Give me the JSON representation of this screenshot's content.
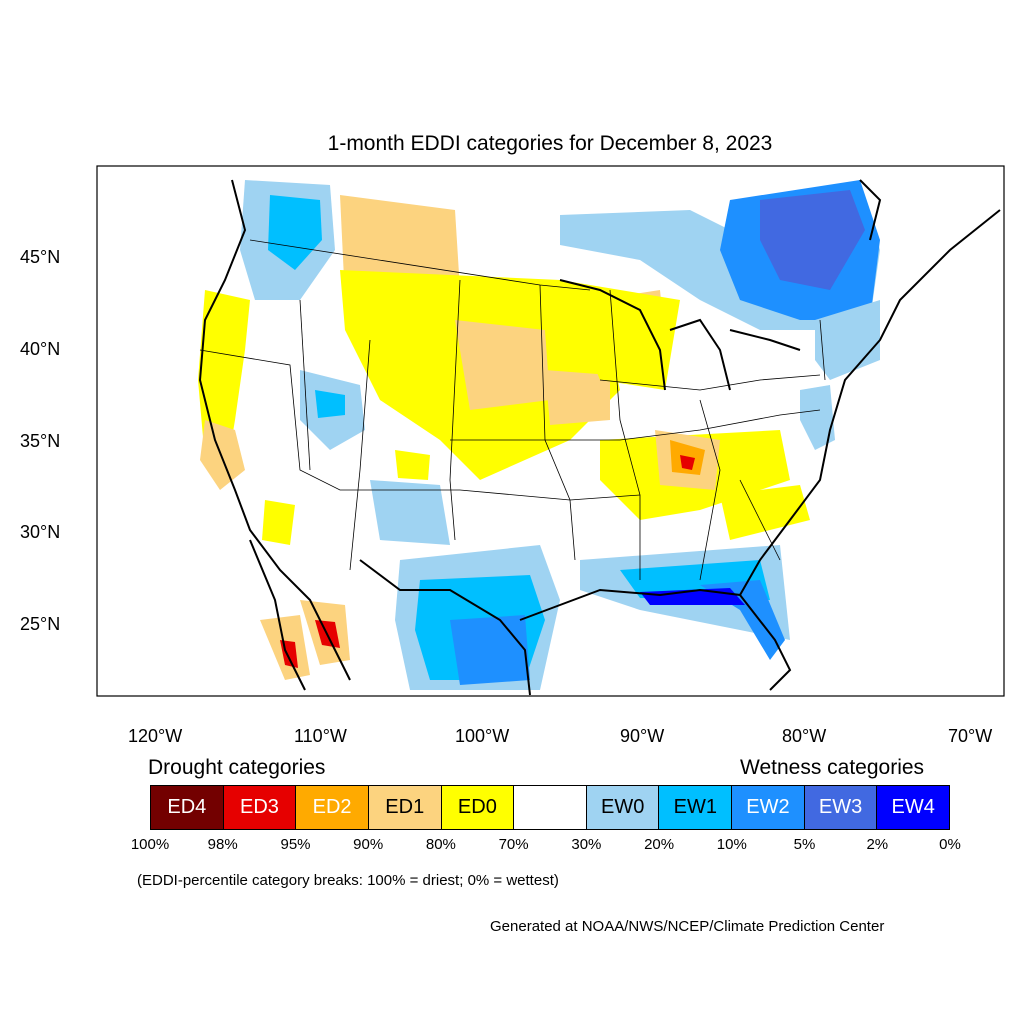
{
  "title": "1-month EDDI categories for December 8, 2023",
  "axes": {
    "lat_labels": [
      "45°N",
      "40°N",
      "35°N",
      "30°N",
      "25°N"
    ],
    "lon_labels": [
      "120°W",
      "110°W",
      "100°W",
      "90°W",
      "80°W",
      "70°W"
    ]
  },
  "legend": {
    "drought_heading": "Drought categories",
    "wetness_heading": "Wetness categories",
    "categories": [
      {
        "label": "ED4",
        "color": "#730000",
        "text_color": "#ffffff"
      },
      {
        "label": "ED3",
        "color": "#e60000",
        "text_color": "#ffffff"
      },
      {
        "label": "ED2",
        "color": "#ffaa00",
        "text_color": "#ffffff"
      },
      {
        "label": "ED1",
        "color": "#fcd37f",
        "text_color": "#000000"
      },
      {
        "label": "ED0",
        "color": "#ffff00",
        "text_color": "#000000"
      },
      {
        "label": "",
        "color": "#ffffff",
        "text_color": "#000000"
      },
      {
        "label": "EW0",
        "color": "#9fd3f2",
        "text_color": "#000000"
      },
      {
        "label": "EW1",
        "color": "#00bfff",
        "text_color": "#000000"
      },
      {
        "label": "EW2",
        "color": "#1e90ff",
        "text_color": "#ffffff"
      },
      {
        "label": "EW3",
        "color": "#4169e1",
        "text_color": "#ffffff"
      },
      {
        "label": "EW4",
        "color": "#0000ff",
        "text_color": "#ffffff"
      }
    ],
    "percent_breaks": [
      "100%",
      "98%",
      "95%",
      "90%",
      "80%",
      "70%",
      "30%",
      "20%",
      "10%",
      "5%",
      "2%",
      "0%"
    ]
  },
  "note": "(EDDI-percentile category breaks: 100% = driest; 0% = wettest)",
  "credit": "Generated at NOAA/NWS/NCEP/Climate Prediction Center"
}
